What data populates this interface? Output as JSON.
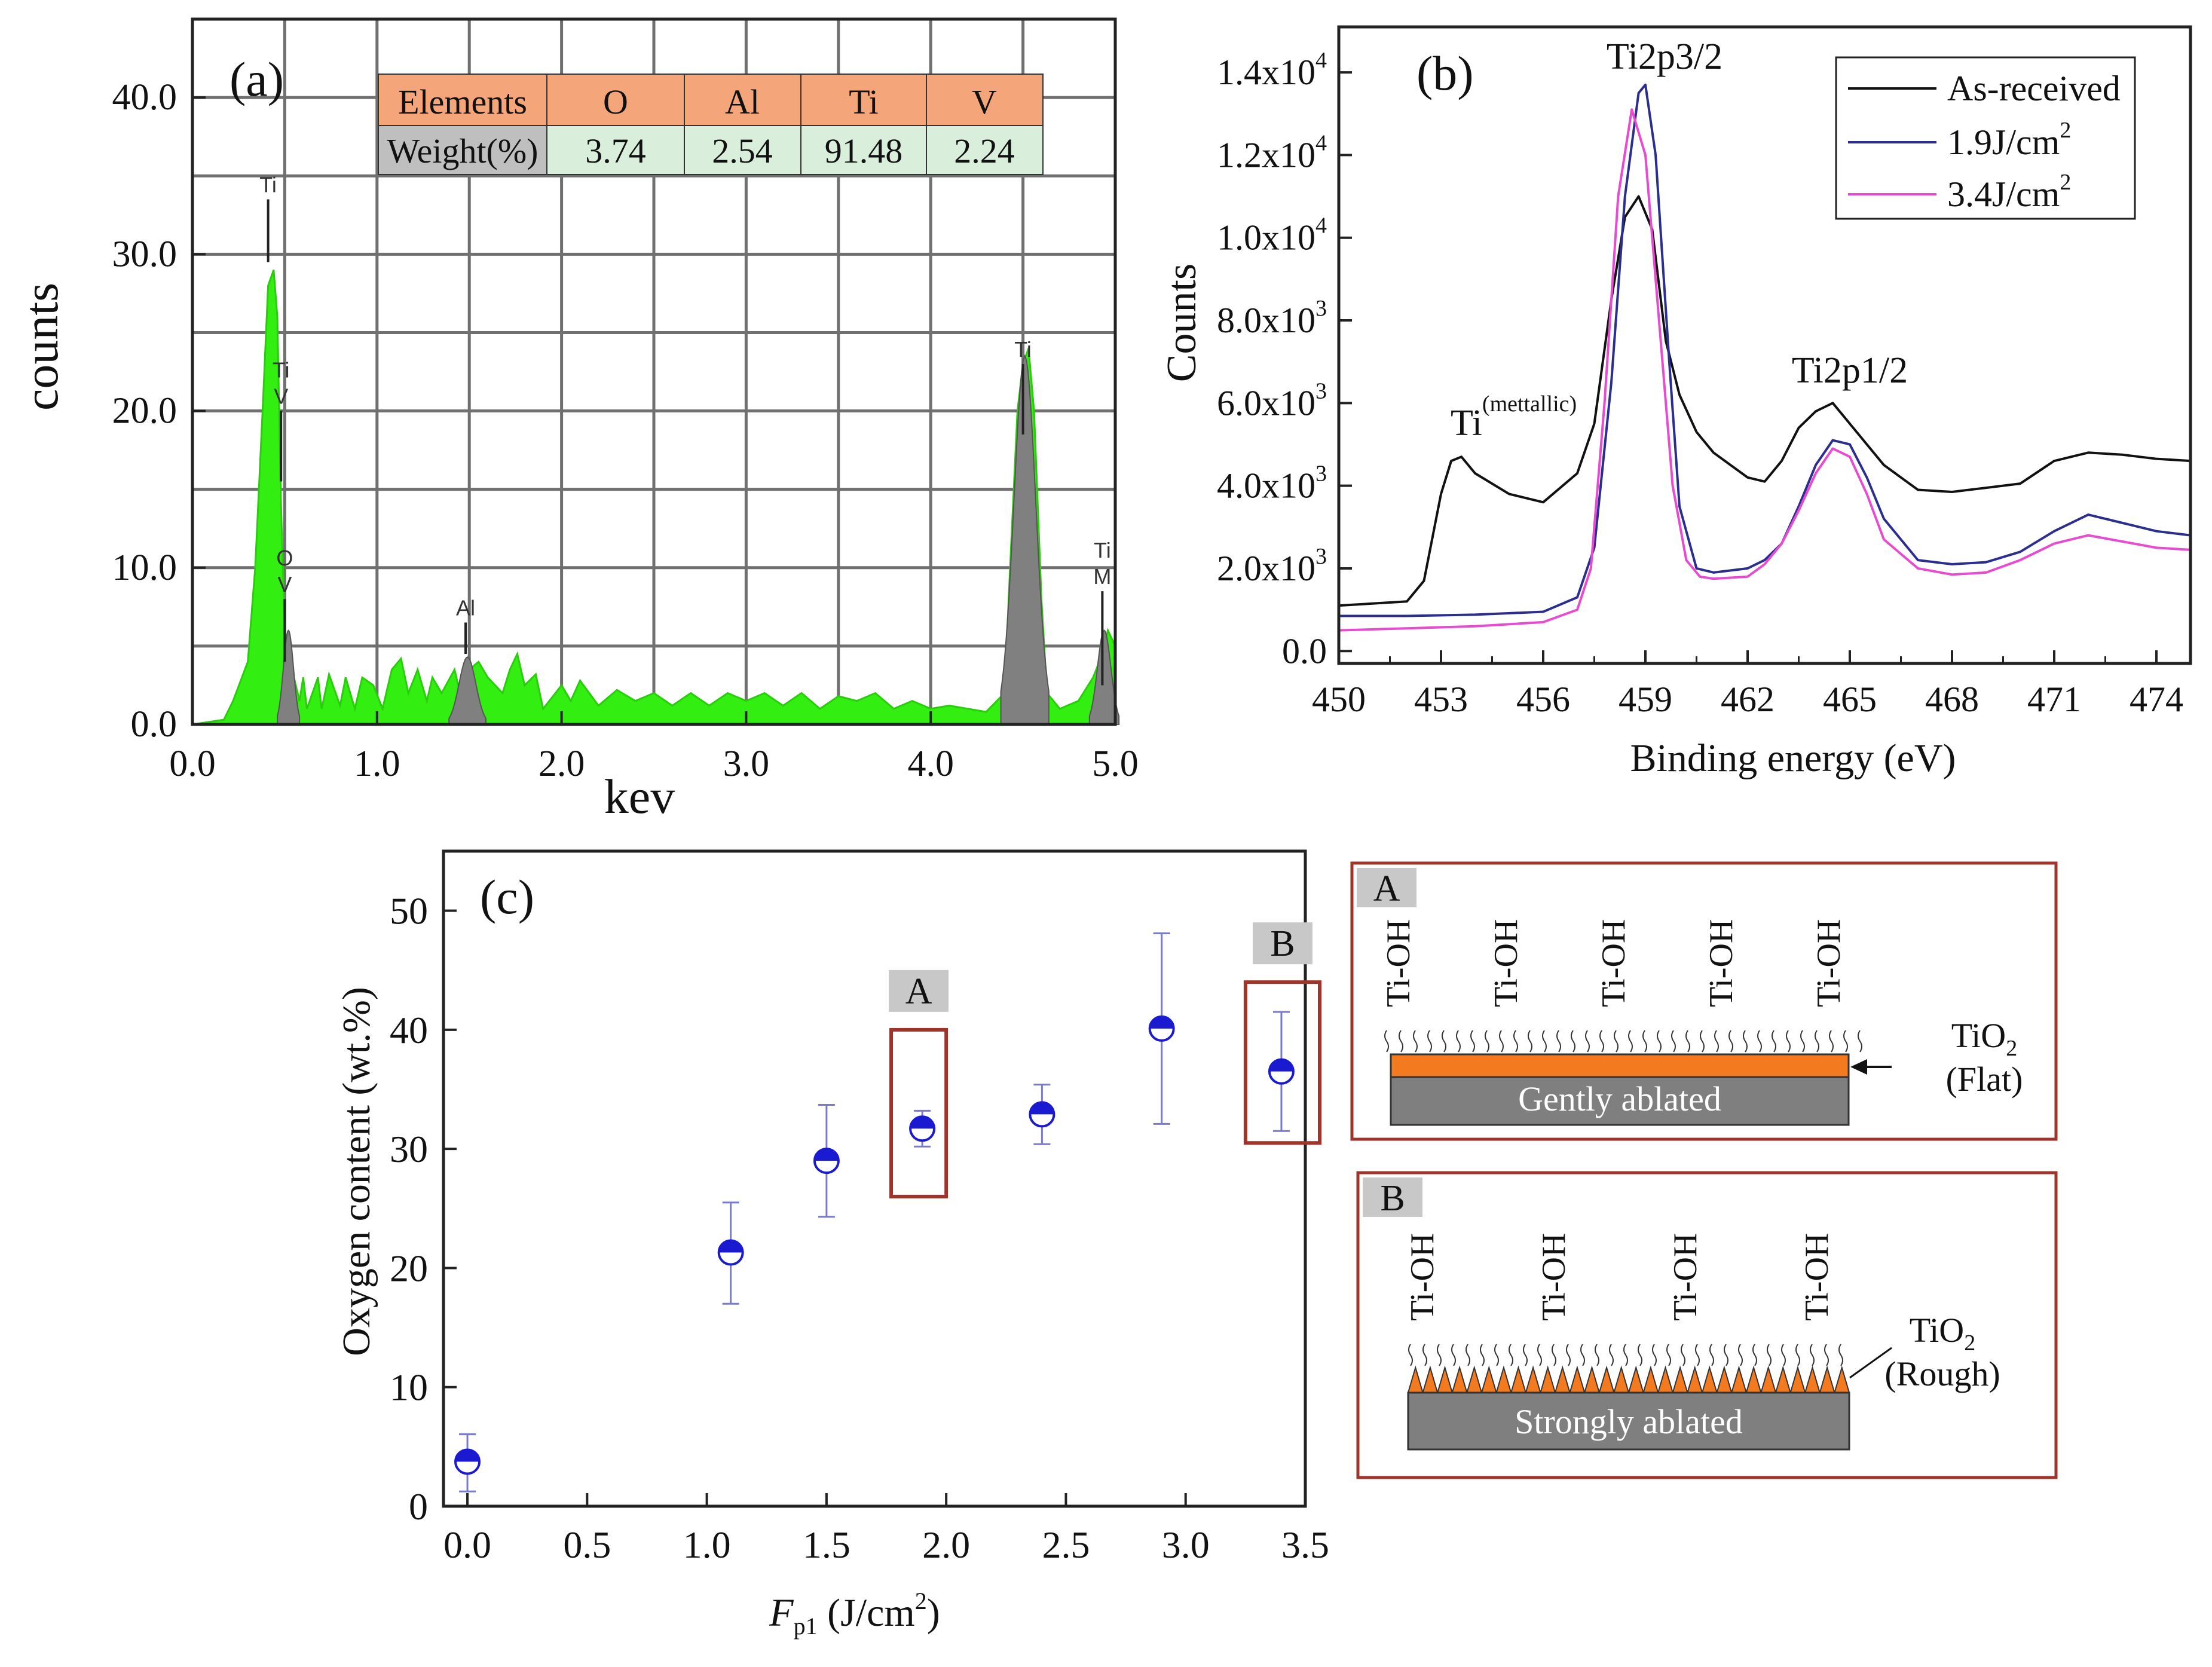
{
  "chart_data": [
    {
      "id": "a",
      "type": "area",
      "panel_label": "(a)",
      "xlabel": "kev",
      "ylabel": "counts",
      "xlim": [
        0,
        5
      ],
      "ylim": [
        0,
        45
      ],
      "x_ticks": [
        "0.0",
        "1.0",
        "2.0",
        "3.0",
        "4.0",
        "5.0"
      ],
      "y_ticks": [
        "0.0",
        "10.0",
        "20.0",
        "30.0",
        "40.0"
      ],
      "grid": true,
      "colors": {
        "spectrum": "#33ee11",
        "element_peaks": "#808080",
        "header_cell": "#f5a57a",
        "value_cell": "#d9eedb",
        "label_cell": "#bfbfbf"
      },
      "green_spectrum": {
        "x": [
          0.0,
          0.17,
          0.22,
          0.3,
          0.34,
          0.38,
          0.41,
          0.44,
          0.46,
          0.48,
          0.5,
          0.52,
          0.55,
          0.58,
          0.6,
          0.62,
          0.68,
          0.7,
          0.74,
          0.8,
          0.83,
          0.88,
          0.92,
          0.98,
          1.03,
          1.08,
          1.13,
          1.17,
          1.22,
          1.27,
          1.3,
          1.35,
          1.42,
          1.45,
          1.5,
          1.55,
          1.6,
          1.68,
          1.72,
          1.76,
          1.8,
          1.86,
          1.9,
          2.0,
          2.05,
          2.1,
          2.2,
          2.3,
          2.4,
          2.5,
          2.6,
          2.7,
          2.8,
          2.9,
          3.0,
          3.1,
          3.2,
          3.3,
          3.4,
          3.5,
          3.6,
          3.7,
          3.8,
          3.9,
          4.0,
          4.1,
          4.2,
          4.3,
          4.4,
          4.43,
          4.47,
          4.5,
          4.53,
          4.56,
          4.6,
          4.63,
          4.7,
          4.8,
          4.88,
          4.93,
          4.96,
          5.0
        ],
        "y": [
          0.0,
          0.3,
          1.5,
          4.0,
          10.0,
          20.0,
          28.0,
          29.0,
          26.0,
          14.0,
          6.0,
          4.0,
          3.0,
          1.5,
          3.0,
          1.0,
          3.0,
          1.0,
          3.2,
          1.2,
          3.0,
          1.0,
          3.0,
          2.5,
          1.0,
          3.5,
          4.2,
          2.0,
          3.5,
          1.5,
          3.0,
          2.0,
          3.5,
          2.0,
          3.5,
          4.0,
          3.0,
          2.0,
          3.5,
          4.5,
          2.5,
          3.2,
          1.0,
          2.5,
          1.5,
          2.8,
          1.2,
          2.2,
          1.5,
          2.0,
          1.2,
          2.0,
          1.2,
          2.0,
          1.5,
          2.0,
          1.2,
          2.0,
          1.0,
          1.8,
          1.5,
          2.0,
          1.0,
          1.5,
          1.0,
          1.2,
          1.0,
          0.8,
          2.0,
          10.0,
          20.0,
          23.0,
          24.0,
          20.0,
          8.0,
          2.0,
          1.0,
          1.5,
          3.0,
          4.5,
          6.0,
          5.0
        ]
      },
      "element_peaks": [
        {
          "center": 0.52,
          "height": 6.0,
          "width": 0.06
        },
        {
          "center": 1.49,
          "height": 4.3,
          "width": 0.1
        },
        {
          "center": 4.51,
          "height": 23.5,
          "width": 0.13
        },
        {
          "center": 4.94,
          "height": 6.0,
          "width": 0.08
        }
      ],
      "line_markers": [
        {
          "x": 0.41,
          "top": 33.5,
          "bottom": 29.5,
          "labels": [
            "Ti"
          ]
        },
        {
          "x": 0.48,
          "top": 20.0,
          "bottom": 15.5,
          "labels": [
            "Ti",
            "V"
          ]
        },
        {
          "x": 0.5,
          "top": 8.0,
          "bottom": 4.0,
          "labels": [
            "O",
            "V"
          ]
        },
        {
          "x": 1.48,
          "top": 6.5,
          "bottom": 4.5,
          "labels": [
            "Al"
          ]
        },
        {
          "x": 4.5,
          "top": 23.0,
          "bottom": 18.5,
          "labels": [
            "Ti"
          ]
        },
        {
          "x": 4.93,
          "top": 8.5,
          "bottom": 2.5,
          "labels": [
            "Ti",
            "M"
          ]
        }
      ],
      "table": {
        "header": [
          "Elements",
          "O",
          "Al",
          "Ti",
          "V"
        ],
        "row": [
          "Weight(%)",
          "3.74",
          "2.54",
          "91.48",
          "2.24"
        ]
      }
    },
    {
      "id": "b",
      "type": "line",
      "panel_label": "(b)",
      "xlabel": "Binding energy (eV)",
      "ylabel": "Counts",
      "xlim": [
        450,
        475
      ],
      "ylim": [
        -300,
        15100
      ],
      "x_ticks": [
        "450",
        "453",
        "456",
        "459",
        "462",
        "465",
        "468",
        "471",
        "474"
      ],
      "y_ticks": [
        {
          "value": 0,
          "base": "0.0",
          "exp": ""
        },
        {
          "value": 2000,
          "base": "2.0x10",
          "exp": "3"
        },
        {
          "value": 4000,
          "base": "4.0x10",
          "exp": "3"
        },
        {
          "value": 6000,
          "base": "6.0x10",
          "exp": "3"
        },
        {
          "value": 8000,
          "base": "8.0x10",
          "exp": "3"
        },
        {
          "value": 10000,
          "base": "1.0x10",
          "exp": "4"
        },
        {
          "value": 12000,
          "base": "1.2x10",
          "exp": "4"
        },
        {
          "value": 14000,
          "base": "1.4x10",
          "exp": "4"
        }
      ],
      "series": [
        {
          "name": "As-received",
          "sup": "",
          "color": "#111111",
          "x": [
            450,
            452,
            452.5,
            453,
            453.3,
            453.6,
            454,
            455,
            456,
            457,
            457.5,
            458,
            458.4,
            458.8,
            459.2,
            459.6,
            460,
            460.5,
            461,
            462,
            462.5,
            463,
            463.5,
            464,
            464.5,
            465,
            466,
            467,
            468,
            469,
            470,
            471,
            472,
            473,
            474,
            475
          ],
          "y": [
            1100,
            1200,
            1700,
            3800,
            4600,
            4700,
            4300,
            3800,
            3600,
            4300,
            5500,
            8500,
            10500,
            11000,
            10200,
            7500,
            6200,
            5300,
            4800,
            4200,
            4100,
            4600,
            5400,
            5800,
            6000,
            5500,
            4500,
            3900,
            3850,
            3950,
            4050,
            4600,
            4800,
            4750,
            4650,
            4600
          ]
        },
        {
          "name": "1.9J/cm",
          "sup": "2",
          "color": "#2b2e8f",
          "x": [
            450,
            452,
            454,
            456,
            457,
            457.5,
            458,
            458.4,
            458.8,
            459,
            459.3,
            459.7,
            460,
            460.5,
            461,
            462,
            462.5,
            463,
            463.5,
            464,
            464.5,
            465,
            465.5,
            466,
            467,
            468,
            469,
            470,
            471,
            472,
            473,
            474,
            475
          ],
          "y": [
            850,
            850,
            880,
            950,
            1300,
            2500,
            6500,
            11000,
            13500,
            13700,
            12000,
            7000,
            3500,
            2000,
            1900,
            2000,
            2200,
            2600,
            3500,
            4500,
            5100,
            5000,
            4200,
            3200,
            2200,
            2100,
            2150,
            2400,
            2900,
            3300,
            3100,
            2900,
            2800
          ]
        },
        {
          "name": "3.4J/cm",
          "sup": "2",
          "color": "#e84bd0",
          "x": [
            450,
            452,
            454,
            456,
            457,
            457.4,
            457.8,
            458.2,
            458.6,
            459,
            459.4,
            459.8,
            460.2,
            460.6,
            461,
            462,
            462.5,
            463,
            463.5,
            464,
            464.5,
            465,
            465.5,
            466,
            467,
            468,
            469,
            470,
            471,
            472,
            473,
            474,
            475
          ],
          "y": [
            500,
            550,
            600,
            700,
            1000,
            2000,
            6000,
            11000,
            13100,
            12000,
            8000,
            4000,
            2200,
            1800,
            1750,
            1800,
            2100,
            2600,
            3400,
            4300,
            4900,
            4700,
            3800,
            2700,
            2000,
            1850,
            1900,
            2200,
            2600,
            2800,
            2650,
            2500,
            2450
          ]
        }
      ],
      "annotations": [
        {
          "text": "Ti2p3/2",
          "sup": ""
        },
        {
          "text": "Ti2p1/2",
          "sup": ""
        },
        {
          "text": "Ti",
          "sup": "(mettallic)"
        }
      ],
      "legend_position": "top-right"
    },
    {
      "id": "c",
      "type": "scatter",
      "panel_label": "(c)",
      "xlabel_main": "F",
      "xlabel_sub": "p1",
      "xlabel_rest": " (J/cm",
      "xlabel_sup": "2",
      "xlabel_close": ")",
      "ylabel": "Oxygen content (wt.%)",
      "xlim": [
        -0.1,
        3.5
      ],
      "ylim": [
        0,
        55
      ],
      "x_ticks": [
        "0.0",
        "0.5",
        "1.0",
        "1.5",
        "2.0",
        "2.5",
        "3.0",
        "3.5"
      ],
      "y_ticks": [
        "0",
        "10",
        "20",
        "30",
        "40",
        "50"
      ],
      "marker_color": "#1a1ad0",
      "errorbar_color": "#7a7acc",
      "box_color": "#a0342a",
      "label_box_color": "#c8c8c8",
      "points": [
        {
          "x": 0.0,
          "y": 3.74,
          "err_low": 2.5,
          "err_high": 2.3
        },
        {
          "x": 1.1,
          "y": 21.3,
          "err_low": 4.3,
          "err_high": 4.2
        },
        {
          "x": 1.5,
          "y": 29.0,
          "err_low": 4.7,
          "err_high": 4.7
        },
        {
          "x": 1.9,
          "y": 31.7,
          "err_low": 1.5,
          "err_high": 1.5
        },
        {
          "x": 2.4,
          "y": 32.9,
          "err_low": 2.5,
          "err_high": 2.5
        },
        {
          "x": 2.9,
          "y": 40.1,
          "err_low": 8.0,
          "err_high": 8.0
        },
        {
          "x": 3.4,
          "y": 36.5,
          "err_low": 5.0,
          "err_high": 5.0
        }
      ],
      "highlight_boxes": [
        {
          "label": "A",
          "x0": 1.77,
          "x0_hi": 2.0,
          "y0": 26.0,
          "y1": 40.0
        },
        {
          "label": "B",
          "x0": 3.25,
          "x0_hi": 3.56,
          "y0": 30.5,
          "y1": 44.0
        }
      ]
    }
  ],
  "schematics": {
    "border_color": "#a0342a",
    "orange_color": "#f47a1f",
    "gray_color": "#7f7f7f",
    "a": {
      "label": "A",
      "group_label": "Ti-OH",
      "group_count": 5,
      "substrate_label": "Gently ablated",
      "oxide_label": "TiO",
      "oxide_sub": "2",
      "oxide_note": "(Flat)"
    },
    "b": {
      "label": "B",
      "group_label": "Ti-OH",
      "group_count": 4,
      "substrate_label": "Strongly ablated",
      "oxide_label": "TiO",
      "oxide_sub": "2",
      "oxide_note": "(Rough)"
    }
  }
}
